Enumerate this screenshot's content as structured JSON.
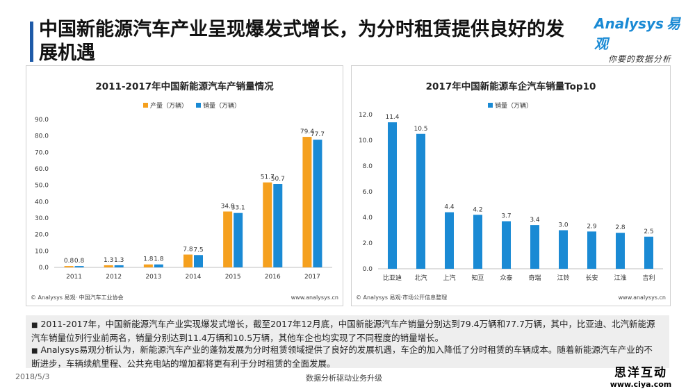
{
  "page": {
    "title": "中国新能源汽车产业呈现爆发式增长，为分时租赁提供良好的发展机遇",
    "logo_en": "Analysys",
    "logo_cn": "易观",
    "logo_tagline": "你要的数据分析",
    "date": "2018/5/3",
    "footer": "数据分析驱动业务升级",
    "stamp_cn": "思洋互动",
    "stamp_url": "www.ciya.com"
  },
  "colors": {
    "accent": "#1e5aa8",
    "orange": "#f5a01e",
    "blue": "#1a8ad4"
  },
  "chart_data": [
    {
      "type": "bar",
      "title": "2011-2017年中国新能源汽车产销量情况",
      "categories": [
        "2011",
        "2012",
        "2013",
        "2014",
        "2015",
        "2016",
        "2017"
      ],
      "series": [
        {
          "name": "产量（万辆）",
          "values": [
            0.8,
            1.3,
            1.8,
            7.8,
            34.0,
            51.7,
            79.4
          ],
          "color": "#f5a01e"
        },
        {
          "name": "销量（万辆）",
          "values": [
            0.8,
            1.3,
            1.8,
            7.5,
            33.1,
            50.7,
            77.7
          ],
          "color": "#1a8ad4"
        }
      ],
      "yticks": [
        "0.0",
        "10.0",
        "20.0",
        "30.0",
        "40.0",
        "50.0",
        "60.0",
        "70.0",
        "80.0",
        "90.0"
      ],
      "ylim": [
        0,
        90
      ],
      "legend": "top",
      "grid": false,
      "source": "© Analysys 易观· 中国汽车工业协会",
      "site": "www.analysys.cn"
    },
    {
      "type": "bar",
      "title": "2017年中国新能源车企汽车销量Top10",
      "categories": [
        "比亚迪",
        "北汽",
        "上汽",
        "知豆",
        "众泰",
        "奇瑞",
        "江铃",
        "长安",
        "江淮",
        "吉利"
      ],
      "series": [
        {
          "name": "销量（万辆）",
          "values": [
            11.4,
            10.5,
            4.4,
            4.2,
            3.7,
            3.4,
            3.0,
            2.9,
            2.8,
            2.5
          ],
          "color": "#1a8ad4"
        }
      ],
      "yticks": [
        "0.0",
        "2.0",
        "4.0",
        "6.0",
        "8.0",
        "10.0",
        "12.0"
      ],
      "ylim": [
        0,
        12
      ],
      "legend": "top",
      "grid": false,
      "source": "© Analysys 易观·市场公开信息整理",
      "site": "www.analysys.cn"
    }
  ],
  "notes": [
    "2011-2017年，中国新能源汽车产业实现爆发式增长，截至2017年12月底，中国新能源汽车产销量分别达到79.4万辆和77.7万辆，其中，比亚迪、北汽新能源汽车销量位列行业前两名，销量分别达到11.4万辆和10.5万辆，其他车企也均实现了不同程度的销量增长。",
    "Analysys易观分析认为，新能源汽车产业的蓬勃发展为分时租赁领域提供了良好的发展机遇，车企的加入降低了分时租赁的车辆成本。随着新能源汽车产业的不断进步，车辆续航里程、公共充电站的增加都将更有利于分时租赁的全面发展。"
  ]
}
